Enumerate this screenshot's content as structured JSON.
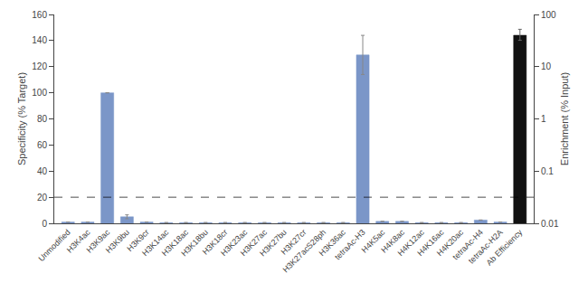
{
  "chart_data": {
    "type": "bar",
    "categories": [
      "Unmodified",
      "H3K4ac",
      "H3K9ac",
      "H3K9bu",
      "H3K9cr",
      "H3K14ac",
      "H3K18ac",
      "H3K18bu",
      "H3K18cr",
      "H3K23ac",
      "H3K27ac",
      "H3K27bu",
      "H3K27cr",
      "H3K27acS28ph",
      "H3K36ac",
      "tetraAc-H3",
      "H4K5ac",
      "H4K8ac",
      "H4K12ac",
      "H4K16ac",
      "H4K20ac",
      "tetraAc-H4",
      "tetraAc-H2A",
      "Ab Efficiency"
    ],
    "series": [
      {
        "color": "#7b96c8",
        "values": [
          1.0,
          1.0,
          100.0,
          5.0,
          1.0,
          0.5,
          0.5,
          0.5,
          0.5,
          0.5,
          0.5,
          0.5,
          0.5,
          0.5,
          0.5,
          129.0,
          1.5,
          1.5,
          0.5,
          0.5,
          0.5,
          2.5,
          1.0,
          null
        ],
        "errors": [
          null,
          null,
          null,
          1.5,
          null,
          null,
          null,
          null,
          null,
          null,
          null,
          null,
          null,
          null,
          null,
          15.0,
          null,
          null,
          null,
          null,
          null,
          null,
          null,
          null
        ]
      },
      {
        "color": "#111111",
        "axis": "y2",
        "values": [
          null,
          null,
          null,
          null,
          null,
          null,
          null,
          null,
          null,
          null,
          null,
          null,
          null,
          null,
          null,
          null,
          null,
          null,
          null,
          null,
          null,
          null,
          null,
          40.0
        ],
        "error_low": [
          null,
          null,
          null,
          null,
          null,
          null,
          null,
          null,
          null,
          null,
          null,
          null,
          null,
          null,
          null,
          null,
          null,
          null,
          null,
          null,
          null,
          null,
          null,
          8.0
        ],
        "error_high": [
          null,
          null,
          null,
          null,
          null,
          null,
          null,
          null,
          null,
          null,
          null,
          null,
          null,
          null,
          null,
          null,
          null,
          null,
          null,
          null,
          null,
          null,
          null,
          12.0
        ]
      }
    ],
    "ylabel": "Specificity (% Target)",
    "y2label": "Enrichment (% Input)",
    "ylim": [
      0,
      160
    ],
    "yticks": [
      0,
      20,
      40,
      60,
      80,
      100,
      120,
      140,
      160
    ],
    "y2lim": [
      0.01,
      100
    ],
    "y2ticks": [
      0.01,
      0.1,
      1,
      10,
      100
    ],
    "log": "y2",
    "grid": false,
    "lines": [
      {
        "y": 20,
        "line_style": "dashed",
        "color": "#000000"
      }
    ]
  }
}
